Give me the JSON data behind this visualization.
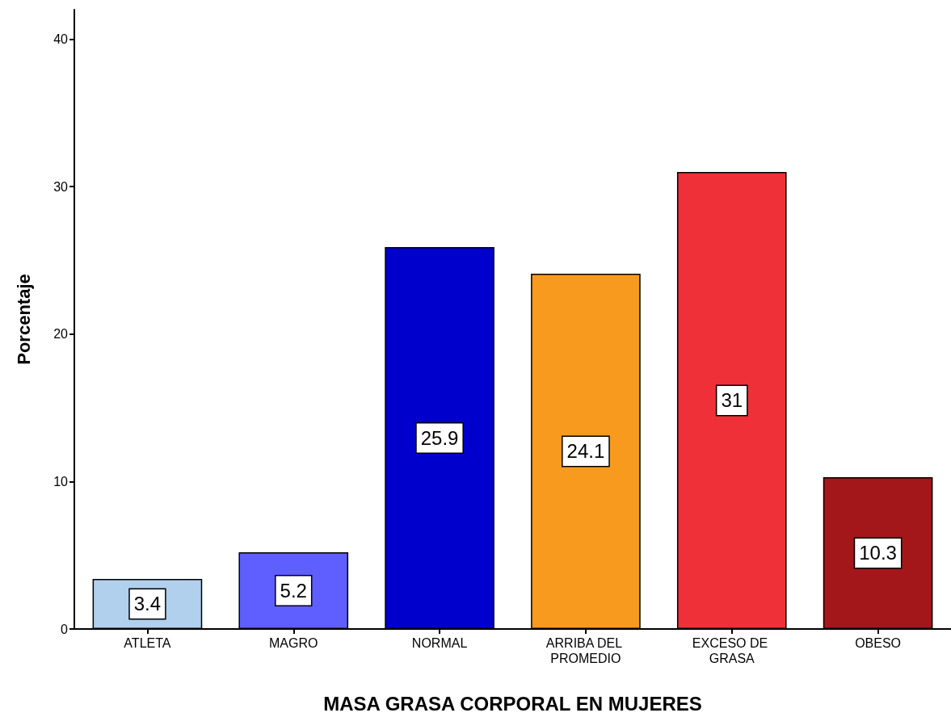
{
  "chart_data": {
    "type": "bar",
    "xlabel": "MASA GRASA CORPORAL EN MUJERES",
    "ylabel": "Porcentaje",
    "categories": [
      "ATLETA",
      "MAGRO",
      "NORMAL",
      "ARRIBA DEL PROMEDIO",
      "EXCESO DE GRASA",
      "OBESO"
    ],
    "values": [
      3.4,
      5.2,
      25.9,
      24.1,
      31,
      10.3
    ],
    "colors": [
      "#b0d0ee",
      "#5f5fff",
      "#0000cc",
      "#f79a1e",
      "#ef3038",
      "#a3171b"
    ],
    "ylim": [
      0,
      42
    ],
    "yticks": [
      0,
      10,
      20,
      30,
      40
    ],
    "grid": false,
    "data_labels": true
  }
}
